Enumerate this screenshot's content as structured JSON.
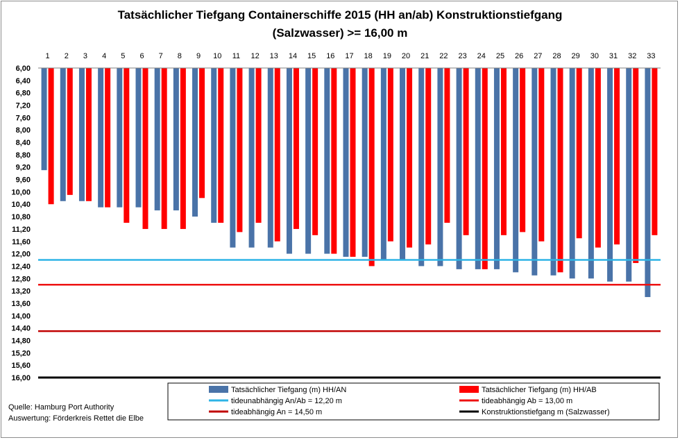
{
  "chart_data": {
    "type": "bar",
    "title": "Tatsächlicher  Tiefgang Containerschiffe  2015  (HH an/ab)  Konstruktionstiefgang",
    "subtitle": "(Salzwasser) >= 16,00 m",
    "categories": [
      "1",
      "2",
      "3",
      "4",
      "5",
      "6",
      "7",
      "8",
      "9",
      "10",
      "11",
      "12",
      "13",
      "14",
      "15",
      "16",
      "17",
      "18",
      "19",
      "20",
      "21",
      "22",
      "23",
      "24",
      "25",
      "26",
      "27",
      "28",
      "29",
      "30",
      "31",
      "32",
      "33"
    ],
    "y_ticks": [
      "6,00",
      "6,40",
      "6,80",
      "7,20",
      "7,60",
      "8,00",
      "8,40",
      "8,80",
      "9,20",
      "9,60",
      "10,00",
      "10,40",
      "10,80",
      "11,20",
      "11,60",
      "12,00",
      "12,40",
      "12,80",
      "13,20",
      "13,60",
      "14,00",
      "14,40",
      "14,80",
      "15,20",
      "15,60",
      "16,00"
    ],
    "ylim": [
      6.0,
      16.0
    ],
    "y_inverted": true,
    "grid": false,
    "series": [
      {
        "name": "Tatsächlicher Tiefgang (m) HH/AN",
        "color": "#4a73a8",
        "values": [
          9.3,
          10.3,
          10.3,
          10.5,
          10.5,
          10.5,
          10.6,
          10.6,
          10.8,
          11.0,
          11.8,
          11.8,
          11.8,
          12.0,
          12.0,
          12.0,
          12.1,
          12.1,
          12.2,
          12.2,
          12.4,
          12.4,
          12.5,
          12.5,
          12.5,
          12.6,
          12.7,
          12.7,
          12.8,
          12.8,
          12.9,
          12.9,
          13.4
        ]
      },
      {
        "name": "Tatsächlicher Tiefgang (m) HH/AB",
        "color": "#ff0000",
        "values": [
          10.4,
          10.1,
          10.3,
          10.5,
          11.0,
          11.2,
          11.2,
          11.2,
          10.2,
          11.0,
          11.3,
          11.0,
          11.6,
          11.2,
          11.4,
          12.0,
          12.1,
          12.4,
          11.6,
          11.8,
          11.7,
          11.0,
          11.4,
          12.5,
          11.4,
          11.3,
          11.6,
          12.6,
          11.5,
          11.8,
          11.7,
          12.3,
          11.4
        ]
      }
    ],
    "reference_lines": [
      {
        "name": "tideunabhängig An/Ab = 12,20 m",
        "value": 12.2,
        "color": "#2eb4e6"
      },
      {
        "name": "tideabhängig Ab = 13,00 m",
        "value": 13.0,
        "color": "#ee1111"
      },
      {
        "name": "tideabhängig An = 14,50 m",
        "value": 14.5,
        "color": "#c00000"
      },
      {
        "name": "Konstruktionstiefgang  m (Salzwasser)",
        "value": 16.0,
        "color": "#000000"
      }
    ],
    "legend_position": "bottom"
  },
  "footnotes": {
    "source": "Quelle: Hamburg Port Authority",
    "analysis": "Auswertung: Förderkreis Rettet die Elbe"
  }
}
